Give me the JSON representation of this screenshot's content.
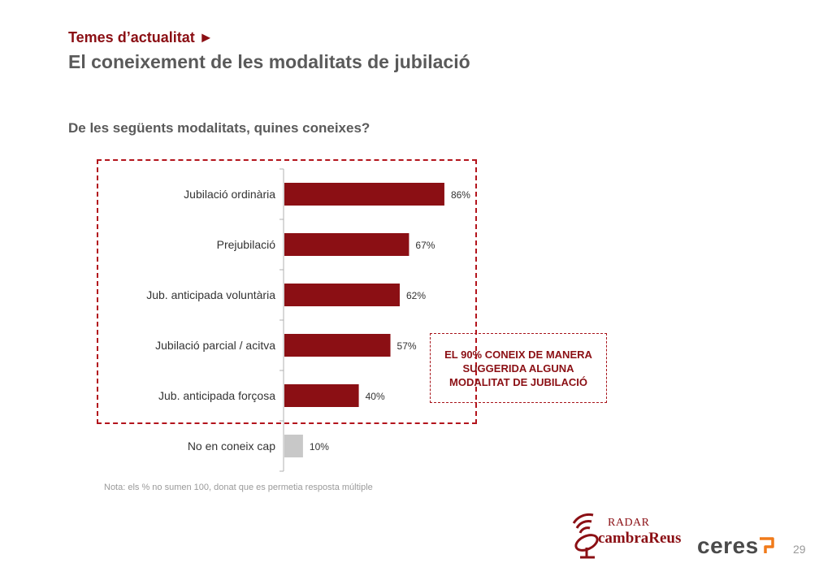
{
  "header": {
    "section": "Temes d’actualitat ►",
    "title": "El coneixement de les modalitats de jubilació"
  },
  "question": "De les següents modalitats, quines coneixes?",
  "chart_data": {
    "type": "bar",
    "orientation": "horizontal",
    "categories": [
      "Jubilació ordinària",
      "Prejubilació",
      "Jub. anticipada voluntària",
      "Jubilació parcial / acitva",
      "Jub. anticipada forçosa",
      "No en coneix cap"
    ],
    "values": [
      86,
      67,
      62,
      57,
      40,
      10
    ],
    "value_labels": [
      "86%",
      "67%",
      "62%",
      "57%",
      "40%",
      "10%"
    ],
    "xlim": [
      0,
      100
    ],
    "grid": false,
    "colors": {
      "primary": "#8b0f14",
      "secondary": "#c8c8c8",
      "highlight_dashed": "#b3141c"
    },
    "bar_colors": [
      "#8b0f14",
      "#8b0f14",
      "#8b0f14",
      "#8b0f14",
      "#8b0f14",
      "#c8c8c8"
    ]
  },
  "callout": {
    "text": "EL 90% CONEIX DE MANERA SUGGERIDA ALGUNA MODALITAT DE JUBILACIÓ"
  },
  "note": "Nota: els % no sumen 100, donat que es permetia resposta múltiple",
  "logos": {
    "radar_word": "RADAR",
    "brand_word": "cambraReus",
    "ceres": "ceres"
  },
  "page_number": "29"
}
